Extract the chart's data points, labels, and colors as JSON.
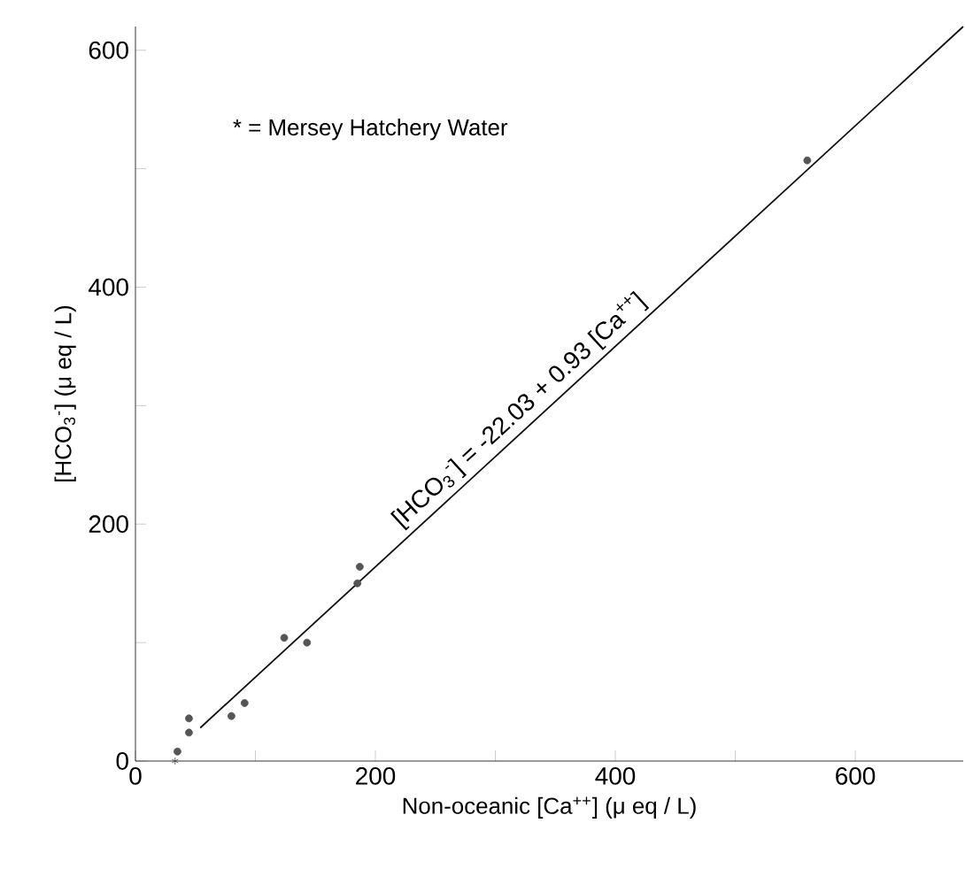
{
  "chart_data": {
    "type": "scatter",
    "xlabel": "Non-oceanic  [Ca$^{++}$]  (μ eq / L)",
    "ylabel": "[HCO$_{3}$$^{-}$]   (μ eq / L)",
    "annotations": [
      "* = Mersey Hatchery Water",
      {
        "text": "[HCO$_{3}$$^{-}$] = -22.03 + 0.93 [Ca$^{++}$]",
        "x": 330,
        "y": 285
      }
    ],
    "series": [
      {
        "marker": "cross",
        "color": "#444444",
        "x": [
          33
        ],
        "values": [
          0
        ]
      },
      {
        "marker": "circle",
        "color": "#555555",
        "x": [
          35,
          44.6,
          44.6,
          80,
          91,
          124,
          143,
          185,
          187,
          560
        ],
        "values": [
          8,
          24,
          36,
          38,
          49,
          104,
          100,
          150,
          164,
          507
        ]
      },
      {
        "type": "line",
        "marker": "none",
        "color": "#111111",
        "x": [
          54,
          690
        ],
        "values": [
          28,
          620
        ]
      }
    ],
    "xlim": [
      0,
      690
    ],
    "ylim": [
      0,
      620
    ],
    "xticks": [
      0,
      {
        "value": 100,
        "label": null
      },
      200,
      {
        "value": 300,
        "label": null
      },
      400,
      {
        "value": 500,
        "label": null
      },
      600
    ],
    "yticks": [
      0,
      {
        "value": 100,
        "label": null
      },
      200,
      {
        "value": 300,
        "label": null
      },
      400,
      {
        "value": 500,
        "label": null
      },
      600
    ]
  }
}
